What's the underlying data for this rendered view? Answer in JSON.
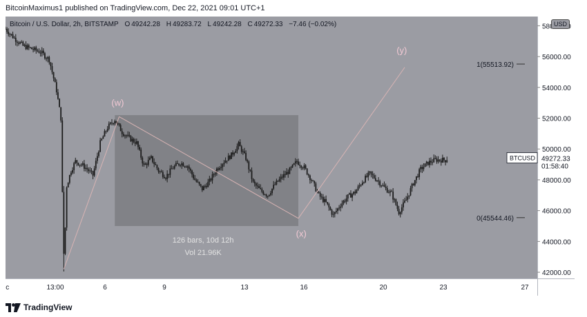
{
  "header": {
    "attribution": "BitcoinMaximus1 published on TradingView.com, Dec 22, 2021 09:01 UTC+1"
  },
  "legend": {
    "symbol": "Bitcoin / U.S. Dollar, 2h, BITSTAMP",
    "o_key": "O",
    "o_val": "49242.28",
    "h_key": "H",
    "h_val": "49283.72",
    "l_key": "L",
    "l_val": "49242.28",
    "c_key": "C",
    "c_val": "49272.33",
    "change": "−7.46 (−0.02%)"
  },
  "currency_button": "USD",
  "footer": {
    "brand": "TradingView",
    "logo_icon": "tradingview-logo-icon"
  },
  "colors": {
    "chart_bg": "#9b9ca3",
    "candle": "#1c1c1c",
    "range_box": "#7d7e83",
    "wave_label": "#f2c9d4",
    "line": "#d8b4b4",
    "axis_text": "#131722"
  },
  "chart_data": {
    "type": "candlestick",
    "ylim": [
      41600,
      58600
    ],
    "y_ticks": [
      "42000.00",
      "44000.00",
      "46000.00",
      "48000.00",
      "50000.00",
      "52000.00",
      "54000.00",
      "56000.00",
      "58000.00"
    ],
    "x_ticks": [
      "ec",
      "13:00",
      "6",
      "9",
      "13",
      "16",
      "20",
      "23",
      "27"
    ],
    "close_path": [
      [
        0,
        57800
      ],
      [
        6,
        57200
      ],
      [
        12,
        56700
      ],
      [
        18,
        56500
      ],
      [
        24,
        56300
      ],
      [
        30,
        55800
      ],
      [
        35,
        53800
      ],
      [
        38,
        52000
      ],
      [
        40,
        42200
      ],
      [
        42,
        47600
      ],
      [
        45,
        48600
      ],
      [
        48,
        49200
      ],
      [
        52,
        49000
      ],
      [
        56,
        48700
      ],
      [
        60,
        48300
      ],
      [
        65,
        50400
      ],
      [
        70,
        51400
      ],
      [
        75,
        51900
      ],
      [
        80,
        51100
      ],
      [
        85,
        50700
      ],
      [
        90,
        50400
      ],
      [
        95,
        48900
      ],
      [
        100,
        49400
      ],
      [
        105,
        48600
      ],
      [
        110,
        48200
      ],
      [
        115,
        48800
      ],
      [
        120,
        49100
      ],
      [
        125,
        48900
      ],
      [
        130,
        48000
      ],
      [
        135,
        47400
      ],
      [
        140,
        47900
      ],
      [
        145,
        48700
      ],
      [
        150,
        49200
      ],
      [
        155,
        49600
      ],
      [
        160,
        50300
      ],
      [
        165,
        49400
      ],
      [
        170,
        47800
      ],
      [
        175,
        47300
      ],
      [
        180,
        47000
      ],
      [
        185,
        47700
      ],
      [
        190,
        48200
      ],
      [
        195,
        48600
      ],
      [
        200,
        49200
      ],
      [
        205,
        48800
      ],
      [
        210,
        48000
      ],
      [
        215,
        47000
      ],
      [
        220,
        46500
      ],
      [
        225,
        45700
      ],
      [
        230,
        46400
      ],
      [
        235,
        46900
      ],
      [
        240,
        47200
      ],
      [
        245,
        47900
      ],
      [
        250,
        48400
      ],
      [
        255,
        48000
      ],
      [
        260,
        47500
      ],
      [
        265,
        47100
      ],
      [
        270,
        45900
      ],
      [
        275,
        46700
      ],
      [
        280,
        47800
      ],
      [
        285,
        48700
      ],
      [
        290,
        49100
      ],
      [
        295,
        49300
      ],
      [
        300,
        49290
      ],
      [
        303,
        49272.33
      ]
    ],
    "range_box": {
      "x_start": 75,
      "x_end": 201,
      "price_high": 52200,
      "price_low": 45000
    },
    "range_stats": {
      "bars": "126 bars, 10d 12h",
      "vol": "Vol 21.96K"
    },
    "wave_labels": [
      {
        "text": "(w)",
        "x": 77,
        "price": 52800
      },
      {
        "text": "(x)",
        "x": 203,
        "price": 44300
      },
      {
        "text": "(y)",
        "x": 272,
        "price": 56200
      }
    ],
    "lines": [
      {
        "from": [
          40,
          42200
        ],
        "to": [
          78,
          52100
        ]
      },
      {
        "from": [
          78,
          52100
        ],
        "to": [
          201,
          45500
        ]
      },
      {
        "from": [
          201,
          45500
        ],
        "to": [
          274,
          55300
        ]
      }
    ],
    "price_markers": [
      {
        "label": "1(55513.92)",
        "price": 55513.92
      },
      {
        "label": "0(45544.46)",
        "price": 45544.46
      }
    ],
    "current_price": {
      "symbol": "BTCUSD",
      "value": "49272.33",
      "countdown": "01:58:40",
      "price": 49272.33
    }
  }
}
